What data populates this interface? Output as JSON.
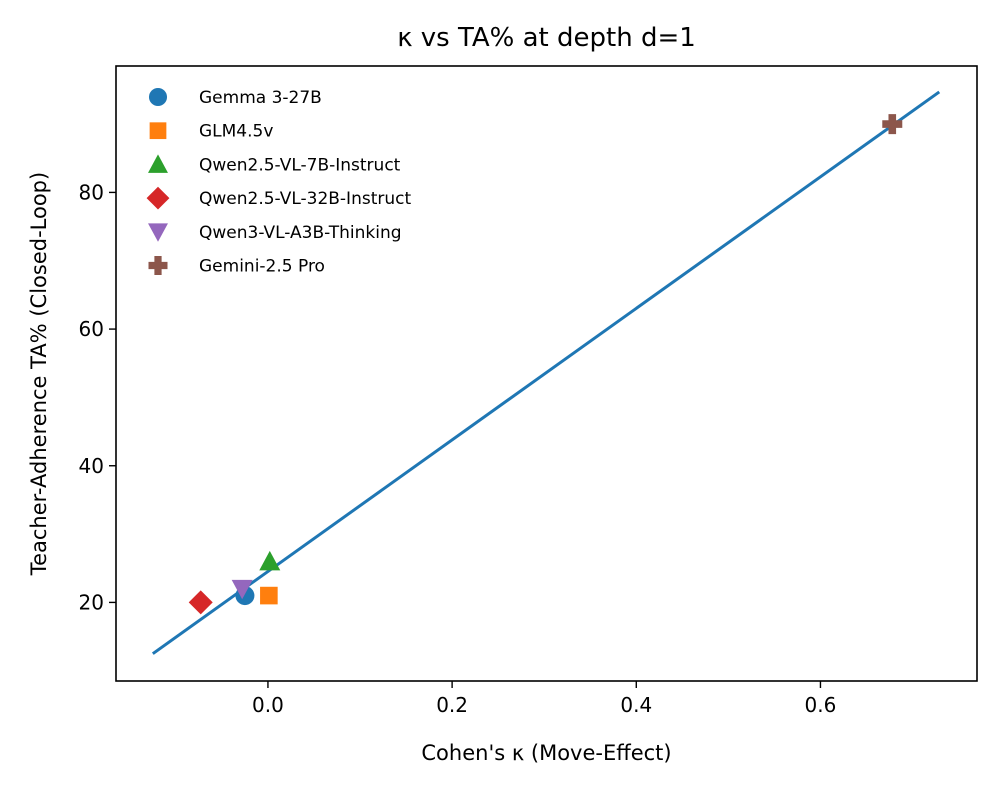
{
  "chart_data": {
    "type": "scatter",
    "title": "κ vs TA% at depth d=1",
    "xlabel": "Cohen's κ (Move-Effect)",
    "ylabel": "Teacher-Adherence TA% (Closed-Loop)",
    "xlim": [
      -0.165,
      0.77
    ],
    "ylim": [
      8.5,
      98.5
    ],
    "xticks": [
      0.0,
      0.2,
      0.4,
      0.6
    ],
    "xtick_labels": [
      "0.0",
      "0.2",
      "0.4",
      "0.6"
    ],
    "yticks": [
      20,
      40,
      60,
      80
    ],
    "ytick_labels": [
      "20",
      "40",
      "60",
      "80"
    ],
    "grid": false,
    "legend_placement": "upper-left",
    "series": [
      {
        "name": "Gemma 3-27B",
        "marker": "circle",
        "color": "#1f77b4",
        "x": [
          -0.025
        ],
        "y": [
          21
        ]
      },
      {
        "name": "GLM4.5v",
        "marker": "square",
        "color": "#ff7f0e",
        "x": [
          0.001
        ],
        "y": [
          21
        ]
      },
      {
        "name": "Qwen2.5-VL-7B-Instruct",
        "marker": "triangle-up",
        "color": "#2ca02c",
        "x": [
          0.002
        ],
        "y": [
          26
        ]
      },
      {
        "name": "Qwen2.5-VL-32B-Instruct",
        "marker": "diamond",
        "color": "#d62728",
        "x": [
          -0.073
        ],
        "y": [
          20
        ]
      },
      {
        "name": "Qwen3-VL-A3B-Thinking",
        "marker": "triangle-down",
        "color": "#9467bd",
        "x": [
          -0.028
        ],
        "y": [
          22
        ]
      },
      {
        "name": "Gemini-2.5 Pro",
        "marker": "plus",
        "color": "#8c564b",
        "x": [
          0.678
        ],
        "y": [
          90
        ]
      }
    ],
    "fit_line": {
      "color": "#1f77b4",
      "x": [
        -0.125,
        0.729
      ],
      "y": [
        12.5,
        94.7
      ]
    }
  }
}
